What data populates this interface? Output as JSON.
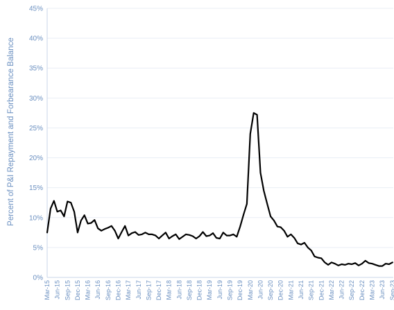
{
  "chart_data": {
    "type": "line",
    "title": "",
    "xlabel": "",
    "ylabel": "Percent of P&I Repayment and Forbearance Balance",
    "ylim": [
      0,
      45
    ],
    "yticks": [
      "0%",
      "5%",
      "10%",
      "15%",
      "20%",
      "25%",
      "30%",
      "35%",
      "40%",
      "45%"
    ],
    "grid": true,
    "legend": "none",
    "line_color": "#000000",
    "x_tick_labels": [
      "Mar-15",
      "Jun-15",
      "Sep-15",
      "Dec-15",
      "Mar-16",
      "Jun-16",
      "Sep-16",
      "Dec-16",
      "Mar-17",
      "Jun-17",
      "Sep-17",
      "Dec-17",
      "Mar-18",
      "Jun-18",
      "Sep-18",
      "Dec-18",
      "Mar-19",
      "Jun-19",
      "Sep-19",
      "Dec-19",
      "Mar-20",
      "Jun-20",
      "Sep-20",
      "Dec-20",
      "Mar-21",
      "Jun-21",
      "Sep-21",
      "Dec-21",
      "Mar-22",
      "Jun-22",
      "Sep-22",
      "Dec-22",
      "Mar-23",
      "Jun-23",
      "Sep-23"
    ],
    "x": [
      "2015-03",
      "2015-04",
      "2015-05",
      "2015-06",
      "2015-07",
      "2015-08",
      "2015-09",
      "2015-10",
      "2015-11",
      "2015-12",
      "2016-01",
      "2016-02",
      "2016-03",
      "2016-04",
      "2016-05",
      "2016-06",
      "2016-07",
      "2016-08",
      "2016-09",
      "2016-10",
      "2016-11",
      "2016-12",
      "2017-01",
      "2017-02",
      "2017-03",
      "2017-04",
      "2017-05",
      "2017-06",
      "2017-07",
      "2017-08",
      "2017-09",
      "2017-10",
      "2017-11",
      "2017-12",
      "2018-01",
      "2018-02",
      "2018-03",
      "2018-04",
      "2018-05",
      "2018-06",
      "2018-07",
      "2018-08",
      "2018-09",
      "2018-10",
      "2018-11",
      "2018-12",
      "2019-01",
      "2019-02",
      "2019-03",
      "2019-04",
      "2019-05",
      "2019-06",
      "2019-07",
      "2019-08",
      "2019-09",
      "2019-10",
      "2019-11",
      "2019-12",
      "2020-01",
      "2020-02",
      "2020-03",
      "2020-04",
      "2020-05",
      "2020-06",
      "2020-07",
      "2020-08",
      "2020-09",
      "2020-10",
      "2020-11",
      "2020-12",
      "2021-01",
      "2021-02",
      "2021-03",
      "2021-04",
      "2021-05",
      "2021-06",
      "2021-07",
      "2021-08",
      "2021-09",
      "2021-10",
      "2021-11",
      "2021-12",
      "2022-01",
      "2022-02",
      "2022-03",
      "2022-04",
      "2022-05",
      "2022-06",
      "2022-07",
      "2022-08",
      "2022-09",
      "2022-10",
      "2022-11",
      "2022-12",
      "2023-01",
      "2023-02",
      "2023-03",
      "2023-04",
      "2023-05",
      "2023-06",
      "2023-07",
      "2023-08",
      "2023-09"
    ],
    "series": [
      {
        "name": "",
        "values": [
          7.5,
          11.5,
          12.8,
          11.0,
          11.2,
          10.2,
          12.7,
          12.5,
          11.0,
          7.5,
          9.5,
          10.4,
          9.0,
          9.1,
          9.6,
          8.2,
          7.8,
          8.1,
          8.3,
          8.6,
          7.8,
          6.5,
          7.6,
          8.6,
          7.0,
          7.4,
          7.6,
          7.1,
          7.2,
          7.5,
          7.2,
          7.2,
          7.0,
          6.5,
          7.0,
          7.5,
          6.5,
          6.9,
          7.2,
          6.4,
          6.8,
          7.2,
          7.1,
          6.9,
          6.5,
          6.9,
          7.6,
          6.9,
          7.0,
          7.4,
          6.6,
          6.5,
          7.5,
          7.0,
          7.0,
          7.2,
          6.8,
          8.5,
          10.5,
          12.3,
          24.0,
          27.5,
          27.2,
          17.5,
          14.5,
          12.3,
          10.2,
          9.5,
          8.5,
          8.4,
          7.8,
          6.8,
          7.2,
          6.6,
          5.7,
          5.5,
          5.8,
          5.0,
          4.5,
          3.5,
          3.3,
          3.2,
          2.5,
          2.1,
          2.5,
          2.3,
          2.0,
          2.2,
          2.1,
          2.3,
          2.2,
          2.4,
          2.0,
          2.3,
          2.8,
          2.4,
          2.3,
          2.1,
          1.9,
          1.9,
          2.3,
          2.2,
          2.5
        ]
      }
    ]
  }
}
